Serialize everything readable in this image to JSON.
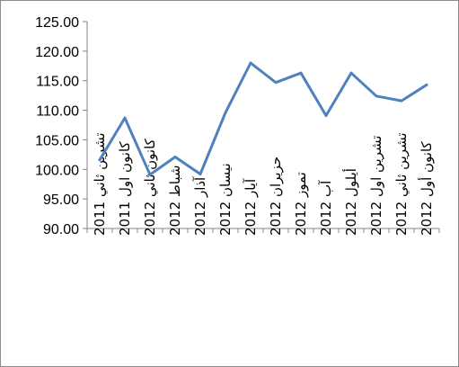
{
  "chart_data": {
    "type": "line",
    "title": "",
    "xlabel": "",
    "ylabel": "",
    "ylim": [
      90,
      125
    ],
    "yticks": [
      "90.00",
      "95.00",
      "100.00",
      "105.00",
      "110.00",
      "115.00",
      "120.00",
      "125.00"
    ],
    "ytick_values": [
      90,
      95,
      100,
      105,
      110,
      115,
      120,
      125
    ],
    "grid": false,
    "legend": "none",
    "categories": [
      "تشرين ثاني 2011",
      "كانون اول 2011",
      "كانون ثاني 2012",
      "شباط 2012",
      "آذار 2012",
      "نيسان 2012",
      "آيار 2012",
      "حزيران 2012",
      "تموز 2012",
      "آب 2012",
      "أيلول 2012",
      "تشرين اول 2012",
      "تشرين ثاني 2012",
      "كانون أول 2012"
    ],
    "series": [
      {
        "values": [
          101.6,
          108.7,
          99.1,
          102.1,
          99.2,
          109.6,
          118.0,
          114.7,
          116.3,
          109.1,
          116.3,
          112.4,
          111.6,
          114.3
        ]
      }
    ],
    "colors": {
      "line": "#4f81bd",
      "axis": "#868686"
    }
  }
}
